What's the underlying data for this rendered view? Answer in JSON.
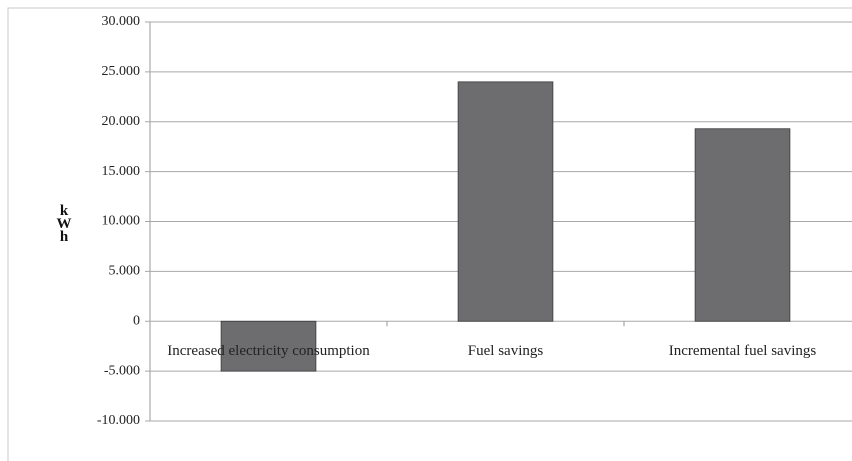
{
  "chart_data": {
    "type": "bar",
    "y_label": "kWh",
    "categories": [
      "Increased electricity consumption",
      "Fuel savings",
      "Incremental fuel savings"
    ],
    "values": [
      -5.0,
      24.0,
      19.3
    ],
    "color": "#6d6d70",
    "ylim": [
      -10,
      30
    ],
    "yticks": [
      {
        "value": -10,
        "label": "-10.000"
      },
      {
        "value": -5,
        "label": "-5.000"
      },
      0,
      {
        "value": 5,
        "label": "5.000"
      },
      {
        "value": 10,
        "label": "10.000"
      },
      {
        "value": 15,
        "label": "15.000"
      },
      {
        "value": 20,
        "label": "20.000"
      },
      {
        "value": 25,
        "label": "25.000"
      },
      {
        "value": 30,
        "label": "30.000"
      }
    ],
    "grid": true
  }
}
